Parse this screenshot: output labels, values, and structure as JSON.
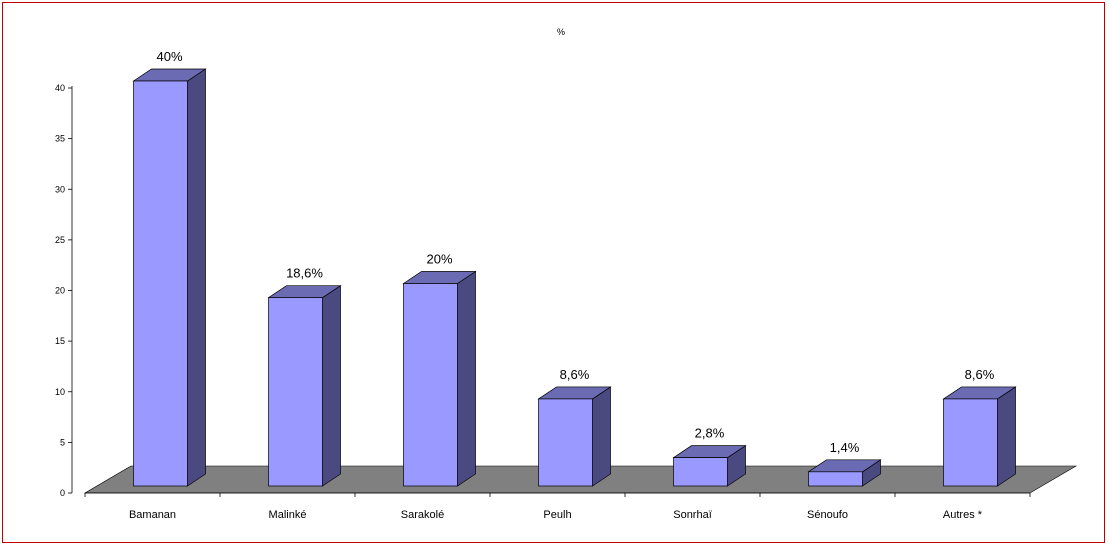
{
  "chart_data": {
    "type": "bar",
    "title": "%",
    "categories": [
      "Bamanan",
      "Malinké",
      "Sarakolé",
      "Peulh",
      "Sonrhaï",
      "Sénoufo",
      "Autres *"
    ],
    "values": [
      40,
      18.6,
      20,
      8.6,
      2.8,
      1.4,
      8.6
    ],
    "data_labels": [
      "40%",
      "18,6%",
      "20%",
      "8,6%",
      "2,8%",
      "1,4%",
      "8,6%"
    ],
    "y_ticks": [
      "0",
      "5",
      "10",
      "15",
      "20",
      "25",
      "30",
      "35",
      "40"
    ],
    "ylim": [
      0,
      40
    ],
    "grid": false,
    "legend": "none",
    "style": "3d-column",
    "colors": {
      "bar_front": "#9999ff",
      "bar_side": "#4a4a80",
      "bar_top": "#6b6bb3",
      "floor": "#808080",
      "border": "#c00000"
    }
  }
}
